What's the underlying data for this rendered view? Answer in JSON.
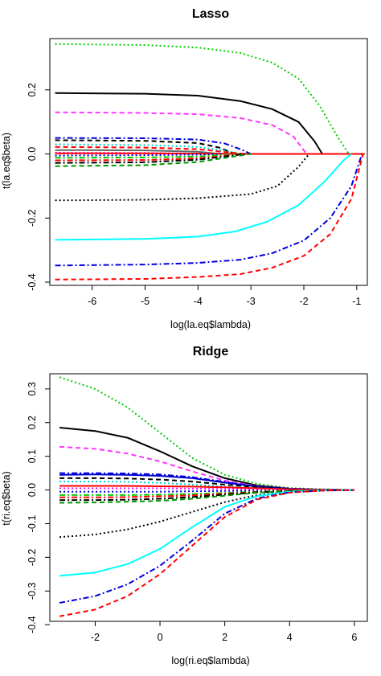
{
  "chart_data": [
    {
      "type": "line",
      "title": "Lasso",
      "xlabel": "log(la.eq$lambda)",
      "ylabel": "t(la.eq$beta)",
      "xlim": [
        -6.8,
        -0.8
      ],
      "ylim": [
        -0.41,
        0.36
      ],
      "xticks": [
        -6,
        -5,
        -4,
        -3,
        -2,
        -1
      ],
      "yticks": [
        -0.4,
        -0.2,
        0.0,
        0.2
      ],
      "tick_labels_x": [
        "-6",
        "-5",
        "-4",
        "-3",
        "-2",
        "-1"
      ],
      "tick_labels_y": [
        "-0.4",
        "-0.2",
        "0.0",
        "0.2"
      ],
      "grid": false,
      "legend": "none",
      "series": [
        {
          "color": "#00cc00",
          "dash": "dot",
          "x": [
            -6.7,
            -5,
            -4,
            -3.2,
            -2.6,
            -2.1,
            -1.7,
            -1.35,
            -1.15
          ],
          "y": [
            0.343,
            0.34,
            0.332,
            0.315,
            0.285,
            0.235,
            0.15,
            0.05,
            0
          ]
        },
        {
          "color": "#000000",
          "dash": "solid",
          "x": [
            -6.7,
            -5,
            -4,
            -3.2,
            -2.6,
            -2.1,
            -1.8,
            -1.65
          ],
          "y": [
            0.19,
            0.188,
            0.182,
            0.165,
            0.14,
            0.1,
            0.04,
            0
          ]
        },
        {
          "color": "#ff33ff",
          "dash": "dash",
          "x": [
            -6.7,
            -5,
            -4,
            -3.2,
            -2.6,
            -2.2,
            -1.95
          ],
          "y": [
            0.13,
            0.128,
            0.124,
            0.112,
            0.09,
            0.055,
            0
          ]
        },
        {
          "color": "#0000dd",
          "dash": "dashdot",
          "x": [
            -6.7,
            -5,
            -4,
            -3.5,
            -3.2,
            -3.0
          ],
          "y": [
            0.05,
            0.049,
            0.045,
            0.033,
            0.015,
            0
          ]
        },
        {
          "color": "#000000",
          "dash": "dash",
          "x": [
            -6.7,
            -5,
            -4,
            -3.6,
            -3.3
          ],
          "y": [
            0.043,
            0.041,
            0.034,
            0.02,
            0
          ]
        },
        {
          "color": "#00cccc",
          "dash": "dot",
          "x": [
            -6.7,
            -5,
            -4,
            -3.5,
            -3.2
          ],
          "y": [
            0.03,
            0.028,
            0.022,
            0.01,
            0
          ]
        },
        {
          "color": "#ff0000",
          "dash": "dash",
          "x": [
            -6.7,
            -5,
            -4,
            -3.5,
            -3.1
          ],
          "y": [
            0.022,
            0.02,
            0.015,
            0.006,
            0
          ]
        },
        {
          "color": "#666666",
          "dash": "solid",
          "x": [
            -6.7,
            -5,
            -4,
            -3.6
          ],
          "y": [
            0.012,
            0.011,
            0.007,
            0
          ]
        },
        {
          "color": "#ff00ff",
          "dash": "dot",
          "x": [
            -6.7,
            -5,
            -4,
            -3.6
          ],
          "y": [
            0.004,
            0.003,
            0.001,
            0
          ]
        },
        {
          "color": "#ff0000",
          "dash": "solid",
          "x": [
            -6.7,
            -5,
            -4,
            -3,
            -2,
            -1,
            -0.85
          ],
          "y": [
            0.002,
            0.002,
            0.001,
            0,
            0,
            0,
            0
          ]
        },
        {
          "color": "#0000dd",
          "dash": "dot",
          "x": [
            -6.7,
            -5,
            -4,
            -3.5
          ],
          "y": [
            -0.005,
            -0.004,
            -0.002,
            0
          ]
        },
        {
          "color": "#00cc00",
          "dash": "dashdot",
          "x": [
            -6.7,
            -5,
            -4,
            -3.5,
            -3.2
          ],
          "y": [
            -0.012,
            -0.011,
            -0.008,
            -0.003,
            0
          ]
        },
        {
          "color": "#ff0000",
          "dash": "dashdot",
          "x": [
            -6.7,
            -5,
            -4,
            -3.5,
            -3.1
          ],
          "y": [
            -0.02,
            -0.019,
            -0.014,
            -0.006,
            0
          ]
        },
        {
          "color": "#000000",
          "dash": "dashdot",
          "x": [
            -6.7,
            -5,
            -4,
            -3.5,
            -3.1
          ],
          "y": [
            -0.028,
            -0.026,
            -0.018,
            -0.008,
            0
          ]
        },
        {
          "color": "#009900",
          "dash": "dash",
          "x": [
            -6.7,
            -5,
            -4,
            -3.4,
            -3.0
          ],
          "y": [
            -0.038,
            -0.035,
            -0.025,
            -0.01,
            0
          ]
        },
        {
          "color": "#000000",
          "dash": "dot",
          "x": [
            -6.7,
            -5,
            -4,
            -3,
            -2.5,
            -2.1,
            -1.9
          ],
          "y": [
            -0.145,
            -0.143,
            -0.138,
            -0.125,
            -0.1,
            -0.04,
            0
          ]
        },
        {
          "color": "#00ffff",
          "dash": "solid",
          "x": [
            -6.7,
            -5,
            -4,
            -3.3,
            -2.7,
            -2.1,
            -1.6,
            -1.25,
            -1.1
          ],
          "y": [
            -0.268,
            -0.265,
            -0.258,
            -0.242,
            -0.212,
            -0.16,
            -0.085,
            -0.02,
            0
          ]
        },
        {
          "color": "#0000dd",
          "dash": "dashdot",
          "x": [
            -6.7,
            -5,
            -4,
            -3.2,
            -2.6,
            -2.0,
            -1.5,
            -1.1,
            -0.9
          ],
          "y": [
            -0.348,
            -0.345,
            -0.34,
            -0.33,
            -0.31,
            -0.27,
            -0.2,
            -0.1,
            0
          ]
        },
        {
          "color": "#ff0000",
          "dash": "dash",
          "x": [
            -6.7,
            -5,
            -4,
            -3.2,
            -2.6,
            -2.0,
            -1.5,
            -1.1,
            -0.88
          ],
          "y": [
            -0.392,
            -0.39,
            -0.384,
            -0.375,
            -0.355,
            -0.318,
            -0.25,
            -0.14,
            0
          ]
        }
      ]
    },
    {
      "type": "line",
      "title": "Ridge",
      "xlabel": "log(ri.eq$lambda)",
      "ylabel": "t(ri.eq$beta)",
      "xlim": [
        -3.4,
        6.4
      ],
      "ylim": [
        -0.39,
        0.345
      ],
      "xticks": [
        -2,
        0,
        2,
        4,
        6
      ],
      "yticks": [
        -0.4,
        -0.3,
        -0.2,
        -0.1,
        0.0,
        0.1,
        0.2,
        0.3
      ],
      "tick_labels_x": [
        "-2",
        "0",
        "2",
        "4",
        "6"
      ],
      "tick_labels_y": [
        "-0.4",
        "-0.3",
        "-0.2",
        "-0.1",
        "0.0",
        "0.1",
        "0.2",
        "0.3"
      ],
      "grid": false,
      "legend": "none",
      "series": [
        {
          "color": "#00cc00",
          "dash": "dot",
          "x": [
            -3.1,
            -2,
            -1,
            0,
            1,
            2,
            3,
            4,
            5,
            6
          ],
          "y": [
            0.335,
            0.3,
            0.245,
            0.17,
            0.095,
            0.045,
            0.018,
            0.006,
            0.002,
            0
          ]
        },
        {
          "color": "#000000",
          "dash": "solid",
          "x": [
            -3.1,
            -2,
            -1,
            0,
            1,
            2,
            3,
            4,
            5,
            6
          ],
          "y": [
            0.185,
            0.175,
            0.155,
            0.115,
            0.07,
            0.035,
            0.013,
            0.004,
            0.001,
            0
          ]
        },
        {
          "color": "#ff33ff",
          "dash": "dash",
          "x": [
            -3.1,
            -2,
            -1,
            0,
            1,
            2,
            3,
            4,
            5,
            6
          ],
          "y": [
            0.128,
            0.122,
            0.108,
            0.085,
            0.055,
            0.028,
            0.011,
            0.004,
            0.001,
            0
          ]
        },
        {
          "color": "#0000dd",
          "dash": "dashdot",
          "x": [
            -3.1,
            -2,
            -1,
            0,
            1,
            2,
            3,
            4,
            5,
            6
          ],
          "y": [
            0.05,
            0.05,
            0.049,
            0.046,
            0.038,
            0.024,
            0.01,
            0.003,
            0.001,
            0
          ]
        },
        {
          "color": "#0000cc",
          "dash": "solid",
          "x": [
            -3.1,
            -2,
            -1,
            0,
            1,
            2,
            3,
            4,
            5,
            6
          ],
          "y": [
            0.045,
            0.046,
            0.045,
            0.042,
            0.035,
            0.022,
            0.01,
            0.003,
            0.001,
            0
          ]
        },
        {
          "color": "#000000",
          "dash": "dash",
          "x": [
            -3.1,
            -2,
            -1,
            0,
            1,
            2,
            3,
            4,
            5,
            6
          ],
          "y": [
            0.035,
            0.035,
            0.034,
            0.031,
            0.025,
            0.016,
            0.008,
            0.003,
            0.001,
            0
          ]
        },
        {
          "color": "#00cccc",
          "dash": "dot",
          "x": [
            -3.1,
            -2,
            -1,
            0,
            1,
            2,
            3,
            4,
            5,
            6
          ],
          "y": [
            0.025,
            0.025,
            0.024,
            0.021,
            0.016,
            0.01,
            0.005,
            0.002,
            0.0005,
            0
          ]
        },
        {
          "color": "#ff0000",
          "dash": "solid",
          "x": [
            -3.1,
            -2,
            -1,
            0,
            1,
            2,
            3,
            4,
            5,
            6
          ],
          "y": [
            0.012,
            0.012,
            0.012,
            0.011,
            0.01,
            0.008,
            0.005,
            0.002,
            0.0005,
            0
          ]
        },
        {
          "color": "#ff00ff",
          "dash": "dot",
          "x": [
            -3.1,
            -2,
            -1,
            0,
            1,
            2,
            3,
            4,
            5,
            6
          ],
          "y": [
            0.005,
            0.005,
            0.005,
            0.005,
            0.004,
            0.003,
            0.002,
            0.001,
            0,
            0
          ]
        },
        {
          "color": "#0000dd",
          "dash": "dot",
          "x": [
            -3.1,
            -2,
            -1,
            0,
            1,
            2,
            3,
            4,
            5,
            6
          ],
          "y": [
            -0.005,
            -0.005,
            -0.005,
            -0.005,
            -0.004,
            -0.003,
            -0.002,
            -0.001,
            0,
            0
          ]
        },
        {
          "color": "#00cc00",
          "dash": "dashdot",
          "x": [
            -3.1,
            -2,
            -1,
            0,
            1,
            2,
            3,
            4,
            5,
            6
          ],
          "y": [
            -0.015,
            -0.015,
            -0.015,
            -0.014,
            -0.012,
            -0.009,
            -0.005,
            -0.002,
            0,
            0
          ]
        },
        {
          "color": "#ff0000",
          "dash": "dashdot",
          "x": [
            -3.1,
            -2,
            -1,
            0,
            1,
            2,
            3,
            4,
            5,
            6
          ],
          "y": [
            -0.022,
            -0.022,
            -0.021,
            -0.019,
            -0.016,
            -0.011,
            -0.006,
            -0.002,
            0,
            0
          ]
        },
        {
          "color": "#000000",
          "dash": "dashdot",
          "x": [
            -3.1,
            -2,
            -1,
            0,
            1,
            2,
            3,
            4,
            5,
            6
          ],
          "y": [
            -0.03,
            -0.03,
            -0.029,
            -0.026,
            -0.021,
            -0.014,
            -0.007,
            -0.003,
            -0.001,
            0
          ]
        },
        {
          "color": "#009900",
          "dash": "dash",
          "x": [
            -3.1,
            -2,
            -1,
            0,
            1,
            2,
            3,
            4,
            5,
            6
          ],
          "y": [
            -0.038,
            -0.037,
            -0.035,
            -0.032,
            -0.026,
            -0.017,
            -0.008,
            -0.003,
            -0.001,
            0
          ]
        },
        {
          "color": "#000000",
          "dash": "dot",
          "x": [
            -3.1,
            -2,
            -1,
            0,
            1,
            2,
            3,
            4,
            5,
            6
          ],
          "y": [
            -0.14,
            -0.132,
            -0.117,
            -0.094,
            -0.065,
            -0.036,
            -0.015,
            -0.005,
            -0.001,
            0
          ]
        },
        {
          "color": "#00ffff",
          "dash": "solid",
          "x": [
            -3.1,
            -2,
            -1,
            0,
            1,
            2,
            3,
            4,
            5,
            6
          ],
          "y": [
            -0.255,
            -0.245,
            -0.22,
            -0.175,
            -0.11,
            -0.05,
            -0.018,
            -0.005,
            -0.001,
            0
          ]
        },
        {
          "color": "#0000dd",
          "dash": "dashdot",
          "x": [
            -3.1,
            -2,
            -1,
            0,
            1,
            2,
            3,
            4,
            5,
            6
          ],
          "y": [
            -0.335,
            -0.315,
            -0.28,
            -0.225,
            -0.15,
            -0.07,
            -0.025,
            -0.007,
            -0.002,
            0
          ]
        },
        {
          "color": "#ff0000",
          "dash": "dash",
          "x": [
            -3.1,
            -2,
            -1,
            0,
            1,
            2,
            3,
            4,
            5,
            6
          ],
          "y": [
            -0.375,
            -0.355,
            -0.315,
            -0.25,
            -0.165,
            -0.08,
            -0.028,
            -0.008,
            -0.002,
            0
          ]
        }
      ]
    }
  ]
}
